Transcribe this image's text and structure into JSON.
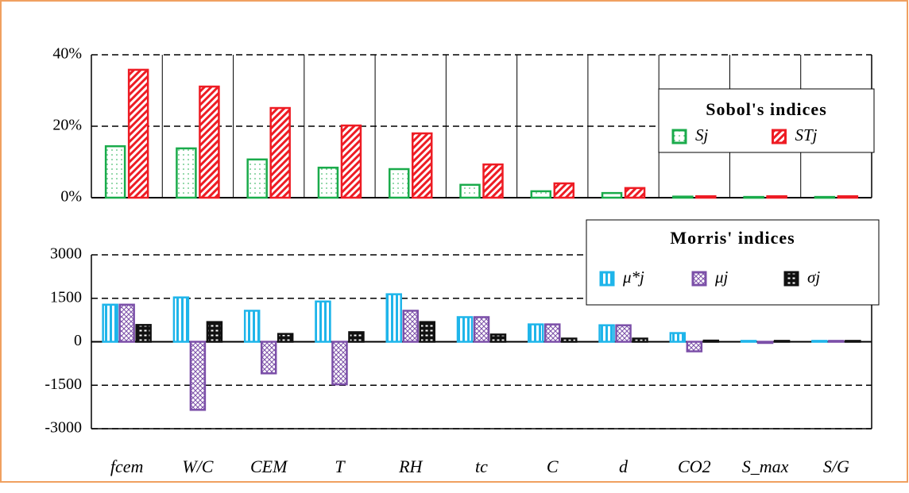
{
  "chart_data": [
    {
      "type": "bar",
      "legend_title": "Sobol's indices",
      "legend": "upper right",
      "ylim": [
        0,
        40
      ],
      "yticks": [
        {
          "value": 0,
          "label": "0%"
        },
        {
          "value": 20,
          "label": "20%"
        },
        {
          "value": 40,
          "label": "40%"
        }
      ],
      "grid": true,
      "series": [
        {
          "name": "Sj",
          "color": "#1aab4b",
          "values": [
            14.4,
            13.8,
            10.7,
            8.4,
            8.0,
            3.6,
            1.8,
            1.3,
            0.3,
            0.2,
            0.2
          ]
        },
        {
          "name": "STj",
          "color": "#ee1c24",
          "values": [
            35.8,
            31.1,
            25.1,
            20.2,
            18.0,
            9.3,
            4.0,
            2.7,
            0.4,
            0.4,
            0.4
          ]
        }
      ]
    },
    {
      "type": "bar",
      "legend_title": "Morris' indices",
      "legend": "upper right",
      "categories": [
        "fcem",
        "W/C",
        "CEM",
        "T",
        "RH",
        "tc",
        "C",
        "d",
        "CO2",
        "S_max",
        "S/G"
      ],
      "ylim": [
        -3000,
        3000
      ],
      "yticks": [
        3000,
        1500,
        0,
        -1500,
        -3000
      ],
      "grid": true,
      "series": [
        {
          "name": "μ*j",
          "color": "#1fb5ea",
          "values": [
            1280,
            1530,
            1070,
            1390,
            1640,
            850,
            600,
            570,
            300,
            30,
            30
          ]
        },
        {
          "name": "μj",
          "color": "#7b4fa8",
          "values": [
            1280,
            -2350,
            -1090,
            -1470,
            1070,
            850,
            600,
            570,
            -330,
            -40,
            30
          ]
        },
        {
          "name": "σj",
          "color": "#111111",
          "values": [
            580,
            680,
            270,
            330,
            680,
            250,
            110,
            110,
            40,
            30,
            30
          ]
        }
      ]
    }
  ]
}
